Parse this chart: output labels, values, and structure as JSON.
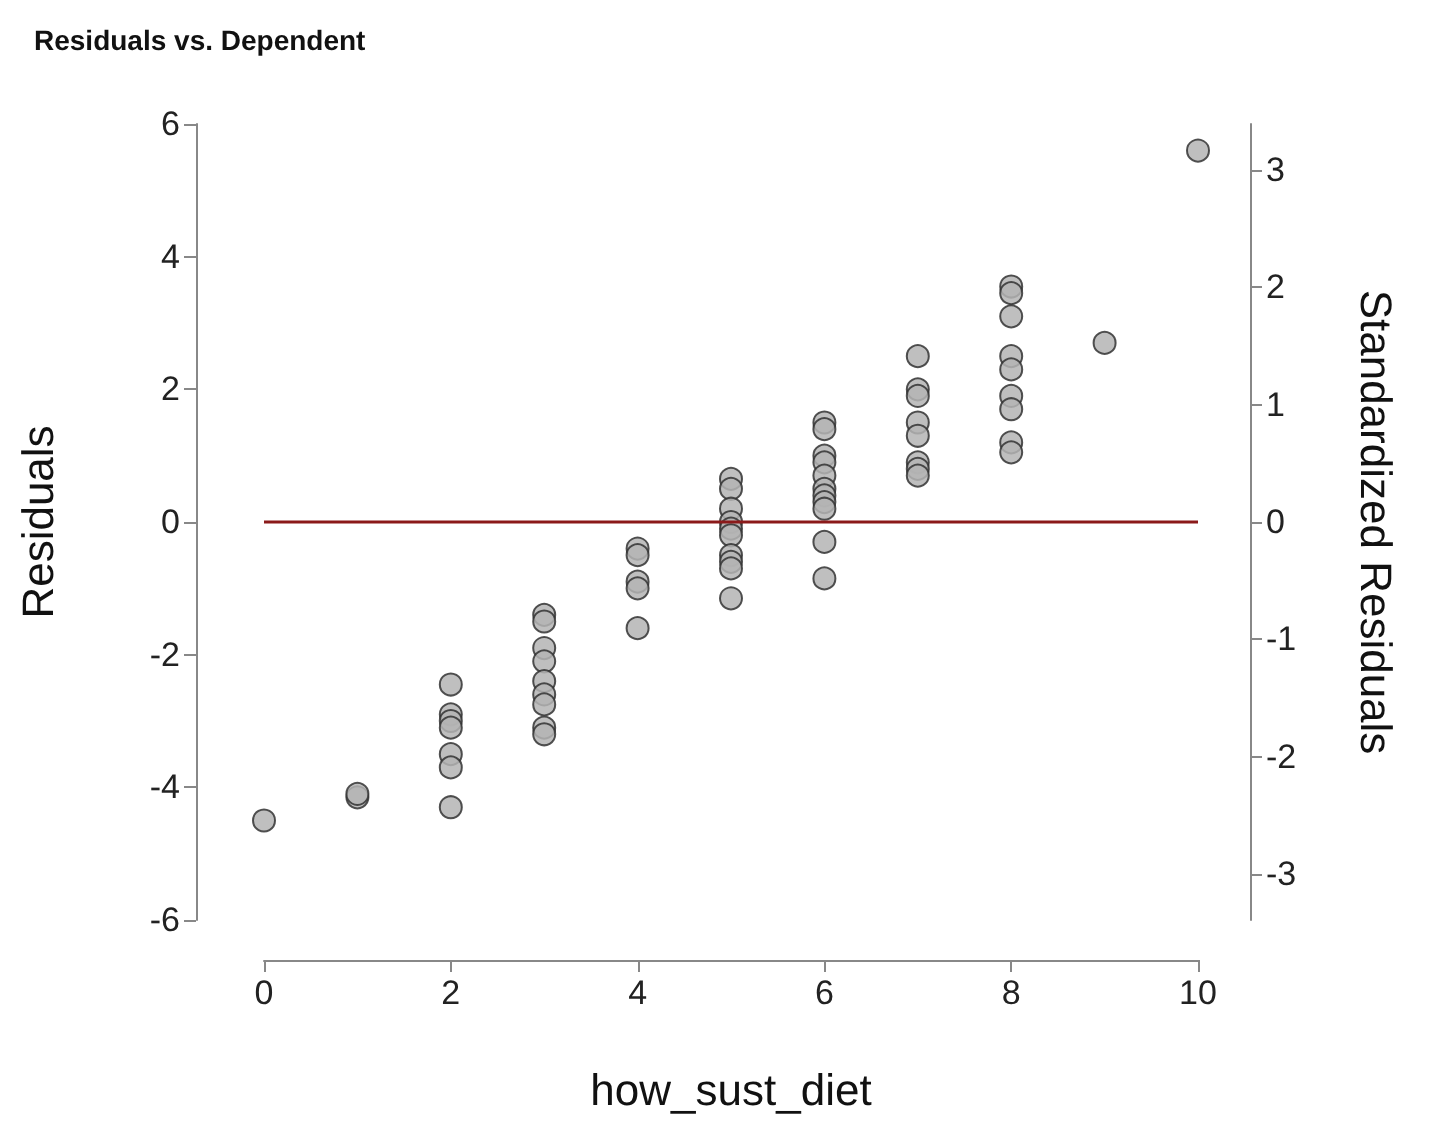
{
  "chart_data": {
    "type": "scatter",
    "title": "Residuals vs. Dependent",
    "xlabel": "how_sust_diet",
    "ylabel": "Residuals",
    "y2label": "Standardized Residuals",
    "series": [
      {
        "color": "#b4b4b4",
        "x": [
          0,
          1,
          1,
          2,
          2,
          2,
          2,
          2,
          2,
          2,
          3,
          3,
          3,
          3,
          3,
          3,
          3,
          3,
          3,
          4,
          4,
          4,
          4,
          4,
          5,
          5,
          5,
          5,
          5,
          5,
          5,
          5,
          5,
          5,
          6,
          6,
          6,
          6,
          6,
          6,
          6,
          6,
          6,
          6,
          6,
          7,
          7,
          7,
          7,
          7,
          7,
          7,
          7,
          8,
          8,
          8,
          8,
          8,
          8,
          8,
          8,
          8,
          9,
          10
        ],
        "values": [
          -4.5,
          -4.15,
          -4.1,
          -2.45,
          -2.9,
          -3.0,
          -3.1,
          -3.5,
          -3.7,
          -4.3,
          -1.4,
          -1.5,
          -1.9,
          -2.1,
          -2.4,
          -2.6,
          -2.75,
          -3.1,
          -3.2,
          -0.4,
          -0.5,
          -0.9,
          -1.0,
          -1.6,
          0.65,
          0.5,
          0.2,
          0.0,
          -0.1,
          -0.2,
          -0.5,
          -0.6,
          -0.7,
          -1.15,
          1.5,
          1.4,
          1.0,
          0.9,
          0.7,
          0.5,
          0.4,
          0.3,
          0.2,
          -0.3,
          -0.85,
          2.5,
          2.0,
          1.9,
          1.5,
          1.3,
          0.9,
          0.8,
          0.7,
          3.55,
          3.45,
          3.1,
          2.5,
          2.3,
          1.9,
          1.7,
          1.2,
          1.05,
          2.7,
          5.6
        ]
      }
    ],
    "xlim": [
      0,
      10
    ],
    "xticks": [
      0,
      2,
      4,
      6,
      8,
      10
    ],
    "ylim": [
      -6,
      6
    ],
    "yticks": [
      -6,
      -4,
      -2,
      0,
      2,
      4,
      6
    ],
    "y2lim": [
      -3.39,
      3.39
    ],
    "y2ticks": [
      -3,
      -2,
      -1,
      0,
      1,
      2,
      3
    ],
    "ref_lines": [
      {
        "axis": "y",
        "value": 0,
        "color": "#8b1a1a",
        "line_style": "solid"
      }
    ],
    "marker": "circle",
    "grid": false
  }
}
